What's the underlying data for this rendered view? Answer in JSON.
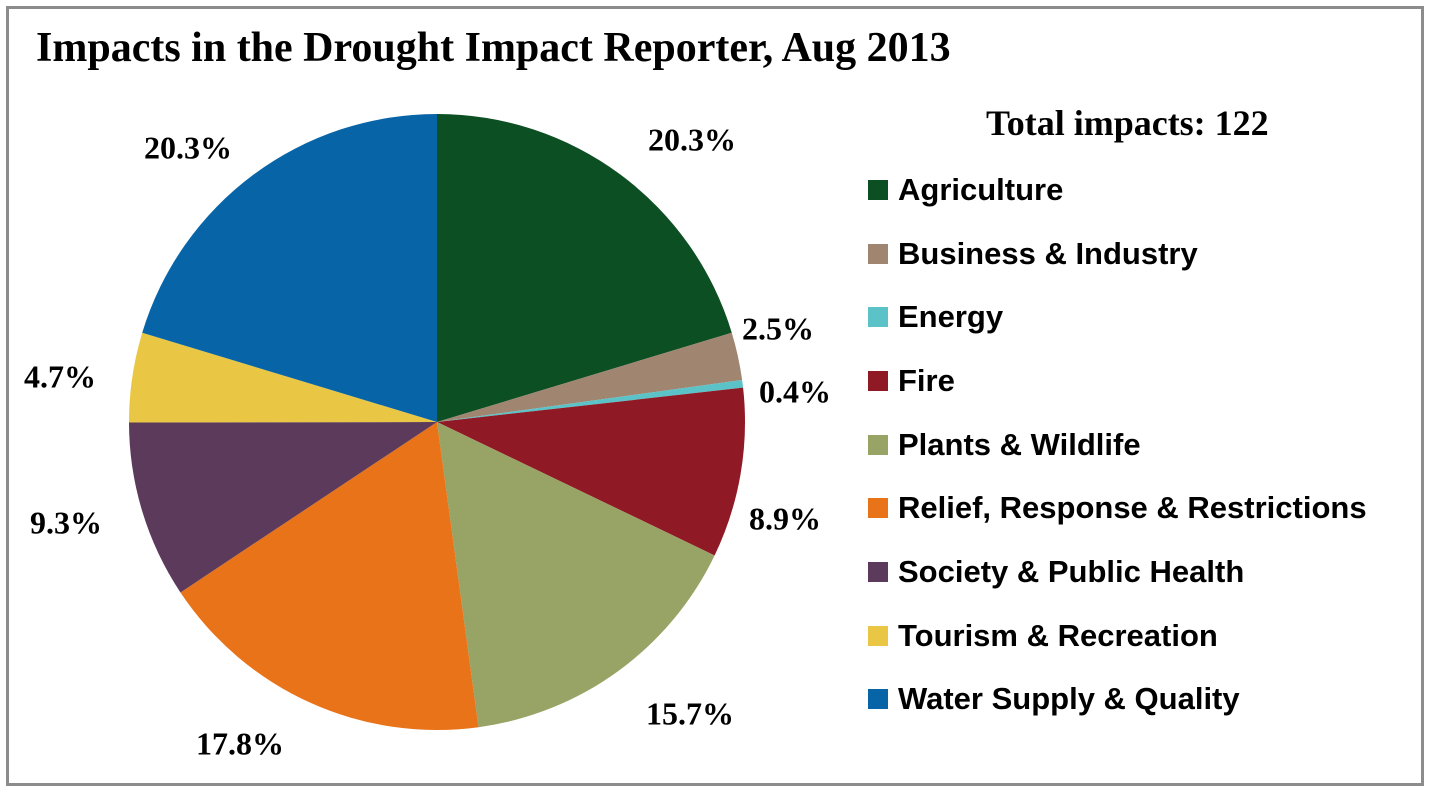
{
  "chart_data": {
    "type": "pie",
    "title": "Impacts in the Drought Impact Reporter, Aug 2013",
    "subtitle": "Total impacts: 122",
    "legend_position": "right",
    "slices": [
      {
        "label": "Agriculture",
        "value": 20.3,
        "display": "20.3%",
        "color": "#0c4f23"
      },
      {
        "label": "Business & Industry",
        "value": 2.5,
        "display": "2.5%",
        "color": "#a08571"
      },
      {
        "label": "Energy",
        "value": 0.4,
        "display": "0.4%",
        "color": "#5bc3c7"
      },
      {
        "label": "Fire",
        "value": 8.9,
        "display": "8.9%",
        "color": "#8f1a25"
      },
      {
        "label": "Plants & Wildlife",
        "value": 15.7,
        "display": "15.7%",
        "color": "#97a466"
      },
      {
        "label": "Relief, Response & Restrictions",
        "value": 17.8,
        "display": "17.8%",
        "color": "#e87319"
      },
      {
        "label": "Society & Public Health",
        "value": 9.3,
        "display": "9.3%",
        "color": "#5c3a5b"
      },
      {
        "label": "Tourism & Recreation",
        "value": 4.7,
        "display": "4.7%",
        "color": "#e9c745"
      },
      {
        "label": "Water Supply & Quality",
        "value": 20.3,
        "display": "20.3%",
        "color": "#0764a7"
      }
    ]
  }
}
